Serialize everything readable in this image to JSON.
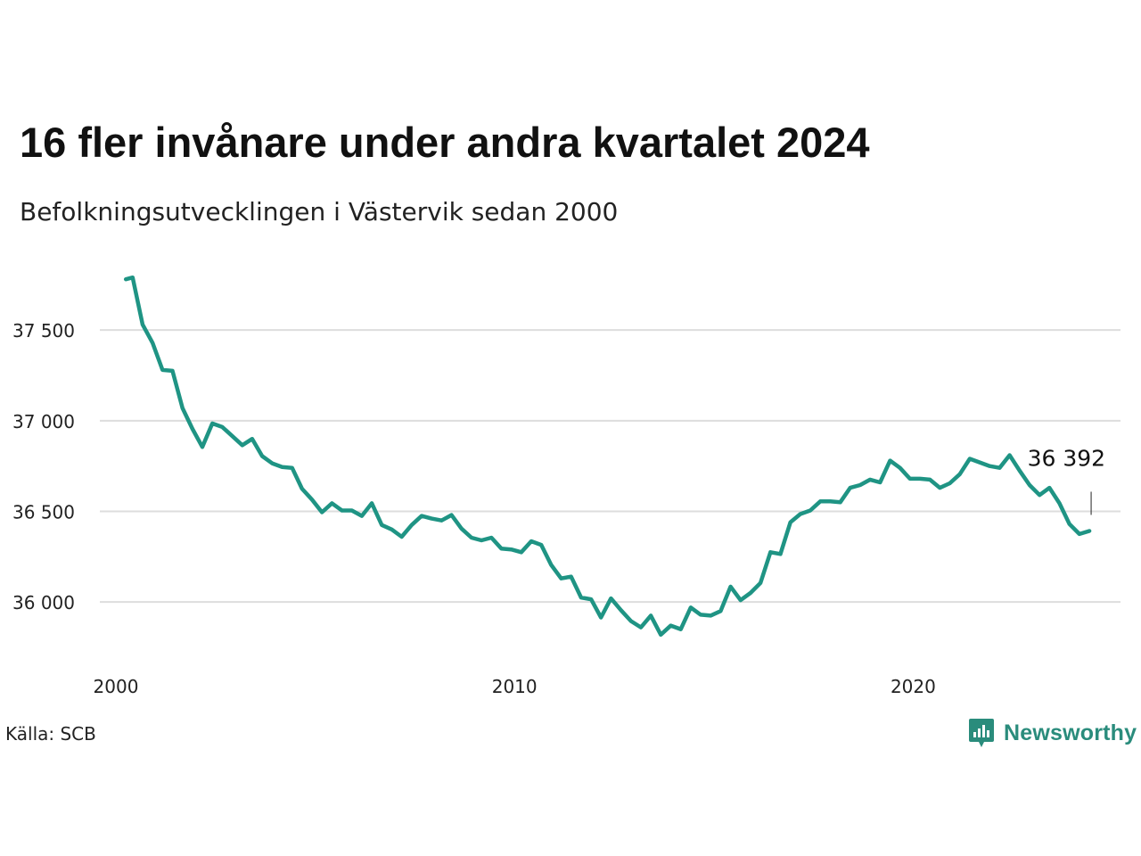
{
  "title": "16 fler invånare under andra kvartalet 2024",
  "subtitle": "Befolkningsutvecklingen i Västervik sedan 2000",
  "source": "Källa: SCB",
  "brand": "Newsworthy",
  "colors": {
    "line": "#1f9484",
    "grid": "#dddddd",
    "brand": "#2a8c7c"
  },
  "chart_data": {
    "type": "line",
    "xlabel": "",
    "ylabel": "",
    "xlim": [
      2000.0,
      2025.0
    ],
    "ylim": [
      35750,
      37850
    ],
    "x_ticks": [
      2000,
      2010,
      2020
    ],
    "x_tick_labels": [
      "2000",
      "2010",
      "2020"
    ],
    "y_ticks": [
      36000,
      36500,
      37000,
      37500
    ],
    "y_tick_labels": [
      "36 000",
      "36 500",
      "37 000",
      "37 500"
    ],
    "grid": true,
    "last_value_label": "36 392",
    "series": [
      {
        "x": [
          2000.25,
          2000.42,
          2000.67,
          2000.92,
          2001.17,
          2001.42,
          2001.67,
          2001.92,
          2002.17,
          2002.42,
          2002.67,
          2002.92,
          2003.17,
          2003.42,
          2003.67,
          2003.92,
          2004.17,
          2004.42,
          2004.67,
          2004.92,
          2005.17,
          2005.42,
          2005.67,
          2005.92,
          2006.17,
          2006.42,
          2006.67,
          2006.92,
          2007.17,
          2007.42,
          2007.67,
          2007.92,
          2008.17,
          2008.42,
          2008.67,
          2008.92,
          2009.17,
          2009.42,
          2009.67,
          2009.92,
          2010.17,
          2010.42,
          2010.67,
          2010.92,
          2011.17,
          2011.42,
          2011.67,
          2011.92,
          2012.17,
          2012.42,
          2012.67,
          2012.92,
          2013.17,
          2013.42,
          2013.67,
          2013.92,
          2014.17,
          2014.42,
          2014.67,
          2014.92,
          2015.17,
          2015.42,
          2015.67,
          2015.92,
          2016.17,
          2016.42,
          2016.67,
          2016.92,
          2017.17,
          2017.42,
          2017.67,
          2017.92,
          2018.17,
          2018.42,
          2018.67,
          2018.92,
          2019.17,
          2019.42,
          2019.67,
          2019.92,
          2020.17,
          2020.42,
          2020.67,
          2020.92,
          2021.17,
          2021.42,
          2021.67,
          2021.92,
          2022.17,
          2022.42,
          2022.67,
          2022.92,
          2023.17,
          2023.42,
          2023.67,
          2023.92,
          2024.17,
          2024.42
        ],
        "values": [
          37780,
          37790,
          37530,
          37430,
          37280,
          37275,
          37070,
          36955,
          36855,
          36985,
          36965,
          36915,
          36865,
          36900,
          36805,
          36765,
          36745,
          36740,
          36625,
          36565,
          36495,
          36545,
          36505,
          36505,
          36475,
          36545,
          36425,
          36400,
          36360,
          36425,
          36475,
          36460,
          36450,
          36480,
          36405,
          36355,
          36340,
          36355,
          36295,
          36290,
          36275,
          36335,
          36315,
          36205,
          36130,
          36140,
          36025,
          36015,
          35915,
          36020,
          35955,
          35895,
          35860,
          35925,
          35820,
          35870,
          35850,
          35970,
          35930,
          35925,
          35950,
          36085,
          36010,
          36050,
          36105,
          36275,
          36265,
          36440,
          36485,
          36505,
          36555,
          36555,
          36550,
          36630,
          36645,
          36675,
          36660,
          36780,
          36740,
          36680,
          36680,
          36675,
          36630,
          36655,
          36705,
          36790,
          36770,
          36750,
          36740,
          36810,
          36725,
          36645,
          36590,
          36630,
          36545,
          36430,
          36375,
          36392
        ]
      }
    ]
  }
}
